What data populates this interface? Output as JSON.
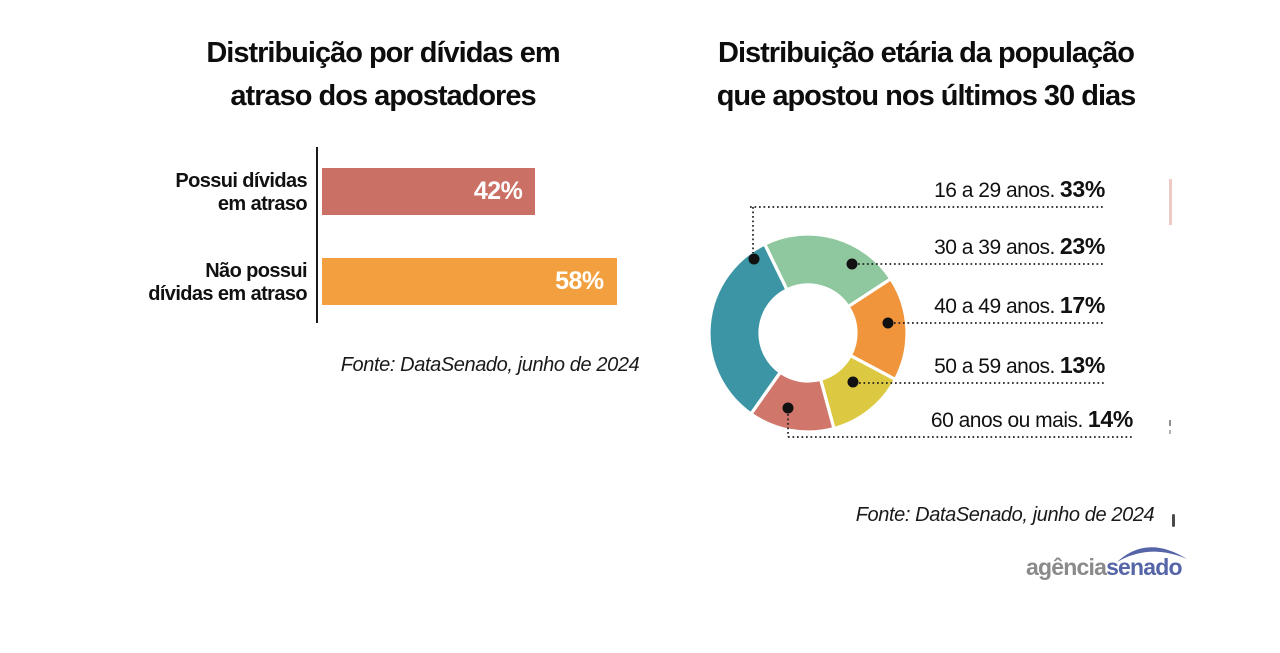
{
  "page": {
    "background": "#ffffff"
  },
  "chart_data": [
    {
      "id": "debt-bar-chart",
      "type": "bar",
      "orientation": "horizontal",
      "title": "Distribuição por dívidas em atraso dos apostadores",
      "title_lines": [
        "Distribuição por dívidas em",
        "atraso dos apostadores"
      ],
      "categories": [
        "Possui dívidas em atraso",
        "Não possui dívidas em atraso"
      ],
      "category_lines": [
        [
          "Possui dívidas",
          "em atraso"
        ],
        [
          "Não possui",
          "dívidas em atraso"
        ]
      ],
      "values": [
        42,
        58
      ],
      "value_labels": [
        "42%",
        "58%"
      ],
      "bar_colors": [
        "#cb7064",
        "#f2a03f"
      ],
      "value_label_color": "#ffffff",
      "xlim": [
        0,
        100
      ],
      "grid": false,
      "source": "Fonte: DataSenado, junho de 2024"
    },
    {
      "id": "age-donut-chart",
      "type": "pie",
      "subtype": "donut",
      "title": "Distribuição etária da população que apostou nos últimos 30 dias",
      "title_lines": [
        "Distribuição etária da população",
        "que apostou nos últimos 30 dias"
      ],
      "slices": [
        {
          "label": "16 a 29 anos.",
          "value": 33,
          "value_label": "33%",
          "color": "#3c95a4"
        },
        {
          "label": "30 a 39 anos.",
          "value": 23,
          "value_label": "23%",
          "color": "#8fc79e"
        },
        {
          "label": "40 a 49 anos.",
          "value": 17,
          "value_label": "17%",
          "color": "#f0953c"
        },
        {
          "label": "50 a 59 anos.",
          "value": 13,
          "value_label": "13%",
          "color": "#dcc941"
        },
        {
          "label": "60 anos ou mais.",
          "value": 14,
          "value_label": "14%",
          "color": "#d0766b"
        }
      ],
      "start_angle_deg": -26,
      "clockwise_draw_order": [
        1,
        2,
        3,
        4,
        0
      ],
      "legend_position": "right",
      "leader_dot_color": "#111111",
      "source": "Fonte: DataSenado, junho de 2024"
    }
  ],
  "footer": {
    "logo": {
      "word_gray": "agência",
      "word_blue": "senado",
      "gray_color": "#8a8a8a",
      "blue_color": "#5565a8"
    }
  }
}
